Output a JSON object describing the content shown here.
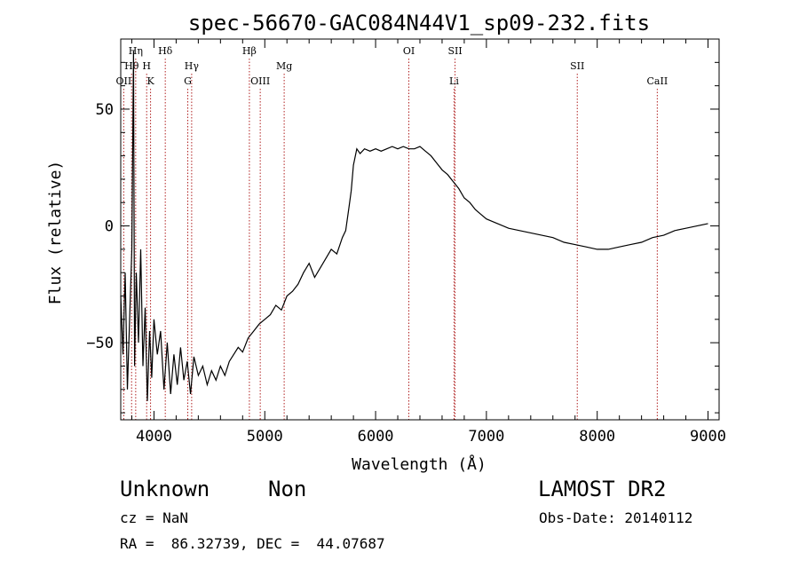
{
  "chart_data": {
    "type": "line",
    "title": "spec-56670-GAC084N44V1_sp09-232.fits",
    "xlabel": "Wavelength (Å)",
    "ylabel": "Flux (relative)",
    "xlim": [
      3700,
      9100
    ],
    "ylim": [
      -83,
      80
    ],
    "x_ticks": [
      4000,
      5000,
      6000,
      7000,
      8000,
      9000
    ],
    "y_ticks": [
      -50,
      0,
      50
    ],
    "grid": false,
    "line_color": "#000000",
    "marker_color": "#b02020",
    "spectral_lines": [
      {
        "label": "OII",
        "wavelength": 3727,
        "row": 3
      },
      {
        "label": "Hθ",
        "wavelength": 3798,
        "row": 2
      },
      {
        "label": "Hη",
        "wavelength": 3835,
        "row": 1
      },
      {
        "label": "H",
        "wavelength": 3934,
        "row": 2
      },
      {
        "label": "K",
        "wavelength": 3969,
        "row": 3
      },
      {
        "label": "Hδ",
        "wavelength": 4102,
        "row": 1
      },
      {
        "label": "Hγ",
        "wavelength": 4340,
        "row": 2
      },
      {
        "label": "G",
        "wavelength": 4305,
        "row": 3
      },
      {
        "label": "Hβ",
        "wavelength": 4861,
        "row": 1
      },
      {
        "label": "OIII",
        "wavelength": 4959,
        "row": 3
      },
      {
        "label": "Mg",
        "wavelength": 5175,
        "row": 2
      },
      {
        "label": "OI",
        "wavelength": 6300,
        "row": 1
      },
      {
        "label": "SII",
        "wavelength": 6717,
        "row": 1
      },
      {
        "label": "Li",
        "wavelength": 6708,
        "row": 3
      },
      {
        "label": "SII",
        "wavelength": 7820,
        "row": 2
      },
      {
        "label": "CaII",
        "wavelength": 8542,
        "row": 3
      }
    ],
    "series": [
      {
        "points": [
          [
            3700,
            -30
          ],
          [
            3720,
            -55
          ],
          [
            3740,
            -20
          ],
          [
            3760,
            -70
          ],
          [
            3780,
            -40
          ],
          [
            3800,
            -10
          ],
          [
            3815,
            75
          ],
          [
            3825,
            -60
          ],
          [
            3840,
            -20
          ],
          [
            3860,
            -50
          ],
          [
            3880,
            -10
          ],
          [
            3900,
            -60
          ],
          [
            3920,
            -35
          ],
          [
            3940,
            -75
          ],
          [
            3960,
            -45
          ],
          [
            3980,
            -65
          ],
          [
            4000,
            -40
          ],
          [
            4030,
            -55
          ],
          [
            4060,
            -45
          ],
          [
            4090,
            -70
          ],
          [
            4120,
            -50
          ],
          [
            4150,
            -72
          ],
          [
            4180,
            -55
          ],
          [
            4210,
            -68
          ],
          [
            4240,
            -52
          ],
          [
            4270,
            -66
          ],
          [
            4300,
            -58
          ],
          [
            4330,
            -72
          ],
          [
            4360,
            -56
          ],
          [
            4400,
            -64
          ],
          [
            4440,
            -60
          ],
          [
            4480,
            -68
          ],
          [
            4520,
            -62
          ],
          [
            4560,
            -66
          ],
          [
            4600,
            -60
          ],
          [
            4640,
            -64
          ],
          [
            4680,
            -58
          ],
          [
            4720,
            -55
          ],
          [
            4760,
            -52
          ],
          [
            4800,
            -54
          ],
          [
            4850,
            -48
          ],
          [
            4900,
            -45
          ],
          [
            4950,
            -42
          ],
          [
            5000,
            -40
          ],
          [
            5050,
            -38
          ],
          [
            5100,
            -34
          ],
          [
            5150,
            -36
          ],
          [
            5200,
            -30
          ],
          [
            5250,
            -28
          ],
          [
            5300,
            -25
          ],
          [
            5350,
            -20
          ],
          [
            5400,
            -16
          ],
          [
            5450,
            -22
          ],
          [
            5500,
            -18
          ],
          [
            5550,
            -14
          ],
          [
            5600,
            -10
          ],
          [
            5650,
            -12
          ],
          [
            5700,
            -5
          ],
          [
            5730,
            -2
          ],
          [
            5760,
            8
          ],
          [
            5780,
            15
          ],
          [
            5800,
            26
          ],
          [
            5830,
            33
          ],
          [
            5860,
            31
          ],
          [
            5900,
            33
          ],
          [
            5950,
            32
          ],
          [
            6000,
            33
          ],
          [
            6050,
            32
          ],
          [
            6100,
            33
          ],
          [
            6150,
            34
          ],
          [
            6200,
            33
          ],
          [
            6250,
            34
          ],
          [
            6300,
            33
          ],
          [
            6350,
            33
          ],
          [
            6400,
            34
          ],
          [
            6450,
            32
          ],
          [
            6500,
            30
          ],
          [
            6550,
            27
          ],
          [
            6600,
            24
          ],
          [
            6650,
            22
          ],
          [
            6700,
            19
          ],
          [
            6750,
            16
          ],
          [
            6800,
            12
          ],
          [
            6850,
            10
          ],
          [
            6900,
            7
          ],
          [
            6950,
            5
          ],
          [
            7000,
            3
          ],
          [
            7050,
            2
          ],
          [
            7100,
            1
          ],
          [
            7200,
            -1
          ],
          [
            7300,
            -2
          ],
          [
            7400,
            -3
          ],
          [
            7500,
            -4
          ],
          [
            7600,
            -5
          ],
          [
            7700,
            -7
          ],
          [
            7800,
            -8
          ],
          [
            7900,
            -9
          ],
          [
            8000,
            -10
          ],
          [
            8100,
            -10
          ],
          [
            8200,
            -9
          ],
          [
            8300,
            -8
          ],
          [
            8400,
            -7
          ],
          [
            8500,
            -5
          ],
          [
            8600,
            -4
          ],
          [
            8700,
            -2
          ],
          [
            8800,
            -1
          ],
          [
            8900,
            0
          ],
          [
            9000,
            1
          ]
        ]
      }
    ]
  },
  "info": {
    "object_class": "Unknown",
    "subclass": "Non",
    "survey": "LAMOST DR2",
    "redshift_text": "cz = NaN",
    "obs_date_text": "Obs-Date: 20140112",
    "coords_text": "RA =  86.32739, DEC =  44.07687"
  }
}
